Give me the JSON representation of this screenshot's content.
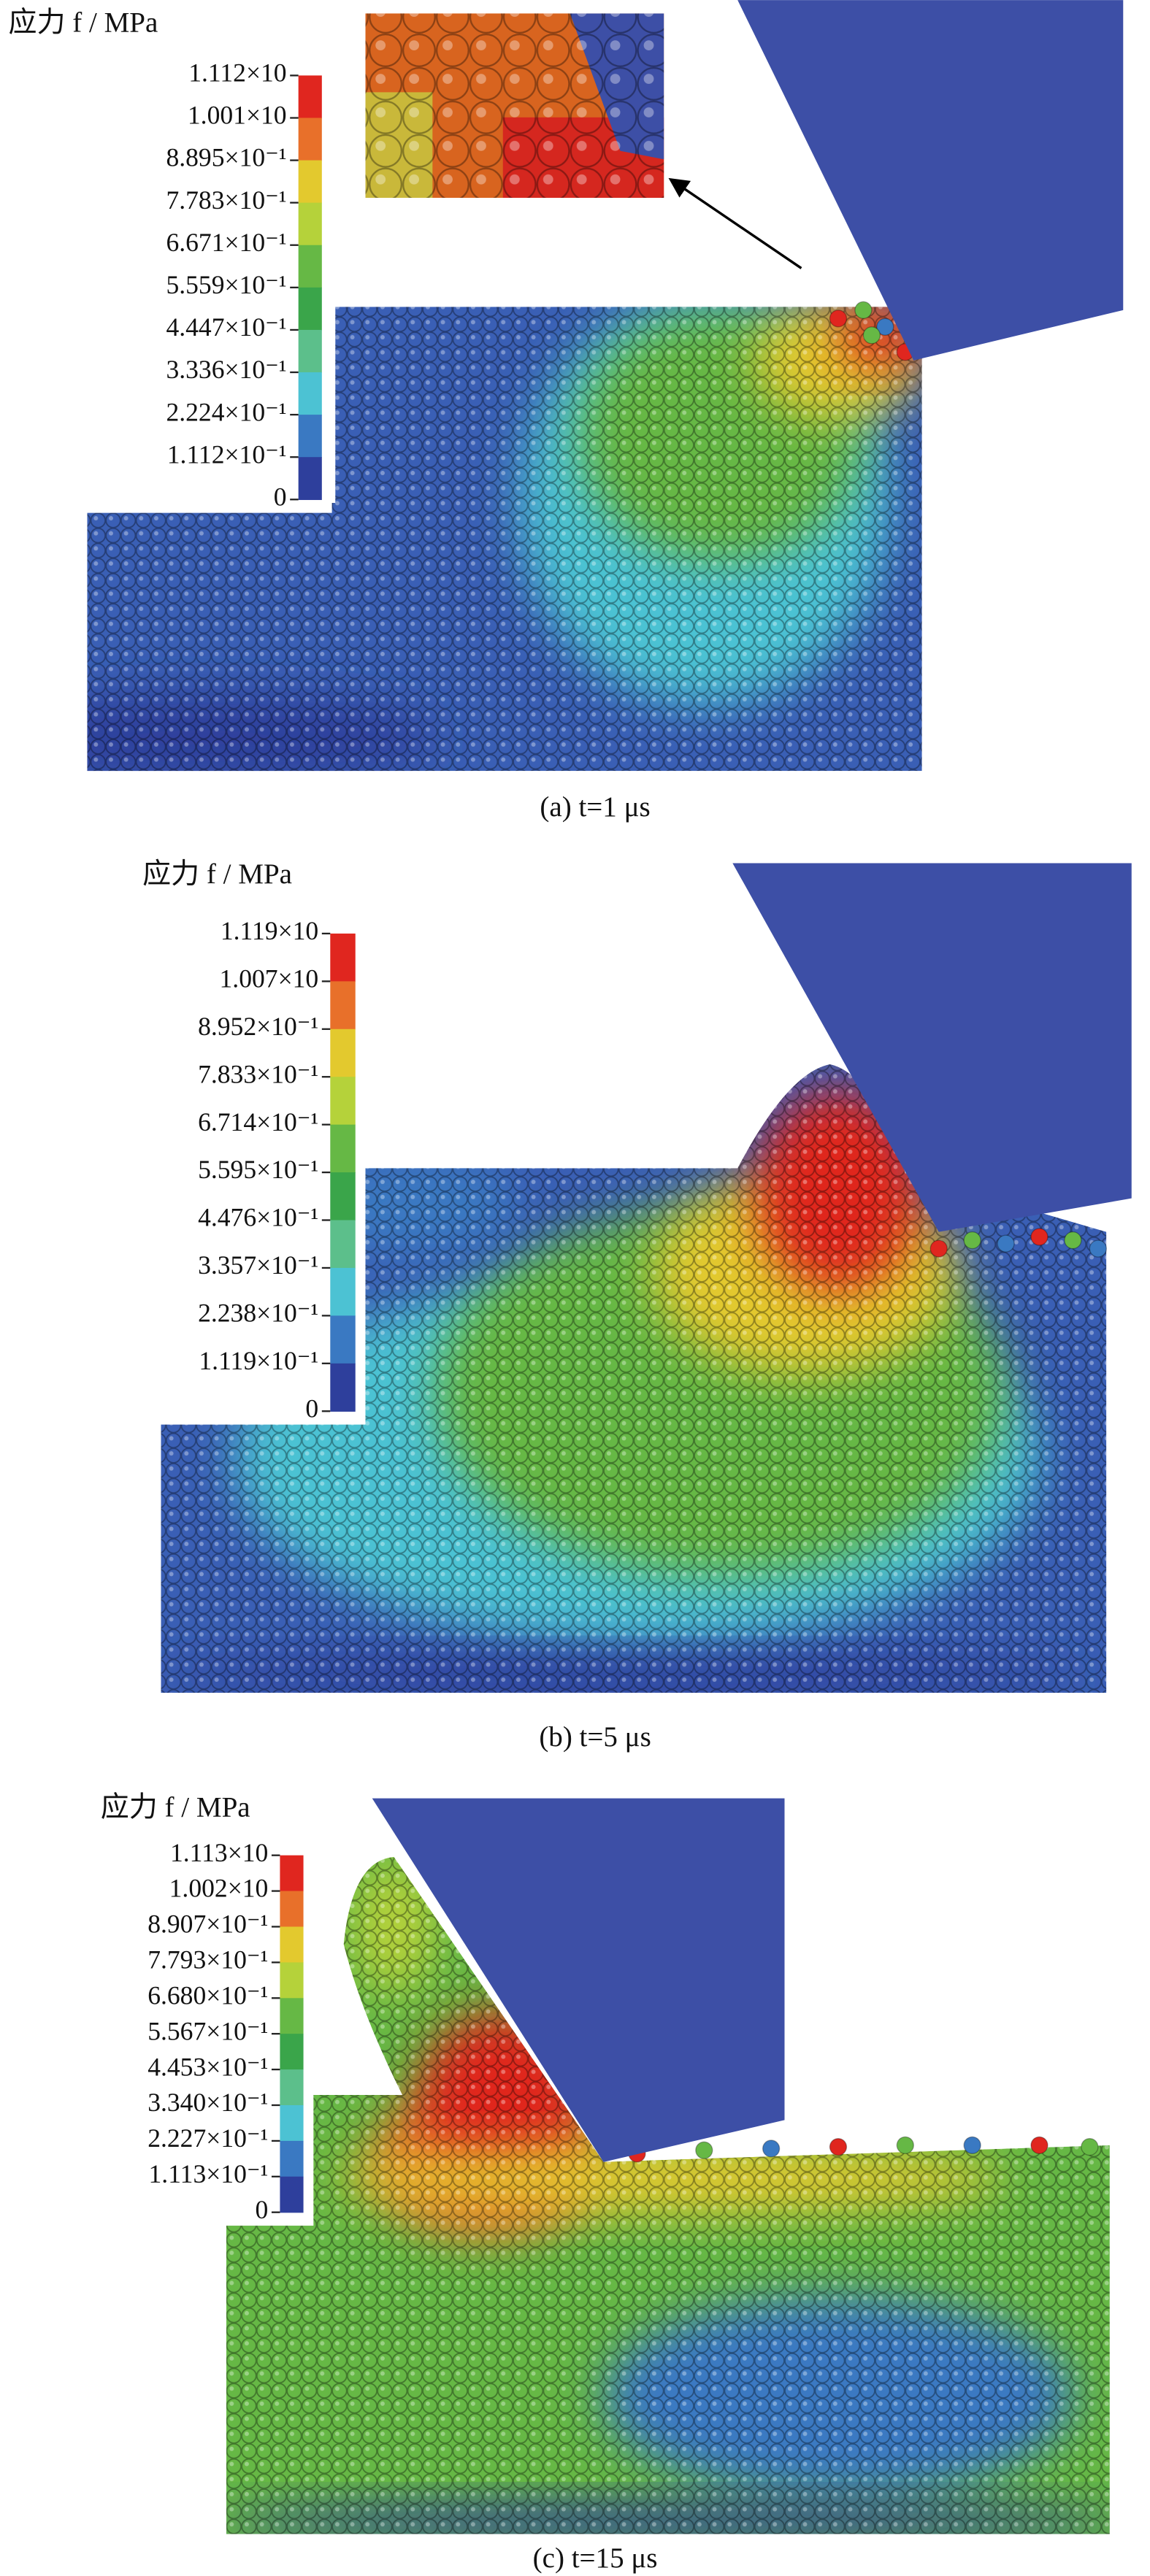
{
  "panels": [
    {
      "legend_title": "应力 f / MPa",
      "legend_labels": [
        "1.112×10",
        "1.001×10",
        "8.895×10⁻¹",
        "7.783×10⁻¹",
        "6.671×10⁻¹",
        "5.559×10⁻¹",
        "4.447×10⁻¹",
        "3.336×10⁻¹",
        "2.224×10⁻¹",
        "1.112×10⁻¹",
        "0"
      ],
      "caption": "(a) t=1 μs"
    },
    {
      "legend_title": "应力 f / MPa",
      "legend_labels": [
        "1.119×10",
        "1.007×10",
        "8.952×10⁻¹",
        "7.833×10⁻¹",
        "6.714×10⁻¹",
        "5.595×10⁻¹",
        "4.476×10⁻¹",
        "3.357×10⁻¹",
        "2.238×10⁻¹",
        "1.119×10⁻¹",
        "0"
      ],
      "caption": "(b) t=5 μs"
    },
    {
      "legend_title": "应力 f / MPa",
      "legend_labels": [
        "1.113×10",
        "1.002×10",
        "8.907×10⁻¹",
        "7.793×10⁻¹",
        "6.680×10⁻¹",
        "5.567×10⁻¹",
        "4.453×10⁻¹",
        "3.340×10⁻¹",
        "2.227×10⁻¹",
        "1.113×10⁻¹",
        "0"
      ],
      "caption": "(c) t=15 μs"
    }
  ]
}
